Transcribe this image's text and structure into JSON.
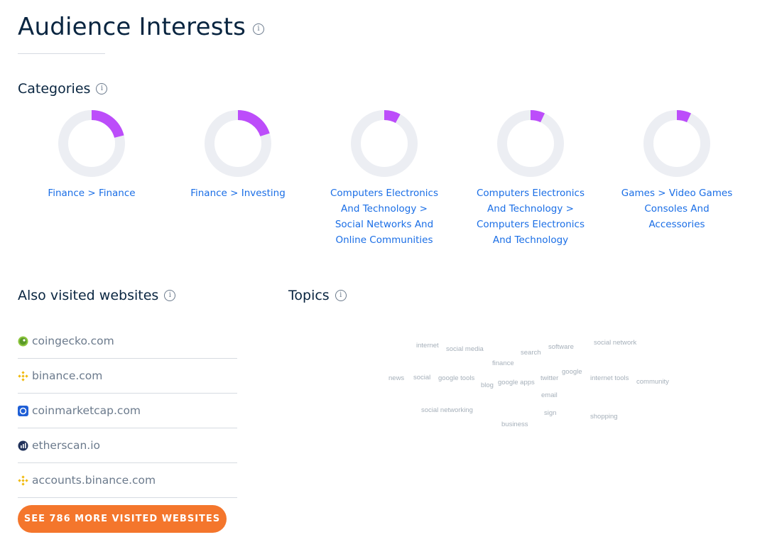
{
  "header": {
    "title": "Audience Interests"
  },
  "categories": {
    "heading": "Categories",
    "items": [
      {
        "label": "Finance > Finance",
        "share": 0.21
      },
      {
        "label": "Finance > Investing",
        "share": 0.2
      },
      {
        "label": "Computers Electronics And Technology > Social Networks And Online Communities",
        "share": 0.08
      },
      {
        "label": "Computers Electronics And Technology > Computers Electronics And Technology",
        "share": 0.07
      },
      {
        "label": "Games > Video Games Consoles And Accessories",
        "share": 0.07
      }
    ],
    "ring_color": "#bc4dfa",
    "track_color": "#eceef3"
  },
  "also_visited": {
    "heading": "Also visited websites",
    "sites": [
      {
        "domain": "coingecko.com",
        "icon": "coingecko-icon"
      },
      {
        "domain": "binance.com",
        "icon": "binance-icon"
      },
      {
        "domain": "coinmarketcap.com",
        "icon": "coinmarketcap-icon"
      },
      {
        "domain": "etherscan.io",
        "icon": "etherscan-icon"
      },
      {
        "domain": "accounts.binance.com",
        "icon": "binance-icon"
      }
    ],
    "cta_label": "SEE 786 MORE VISITED WEBSITES",
    "cta_color": "#f4762c"
  },
  "topics": {
    "heading": "Topics",
    "words": [
      "internet",
      "social media",
      "search",
      "software",
      "social network",
      "finance",
      "news",
      "social",
      "google tools",
      "blog",
      "google apps",
      "twitter",
      "google",
      "internet tools",
      "community",
      "email",
      "social networking",
      "sign",
      "shopping",
      "business"
    ]
  }
}
